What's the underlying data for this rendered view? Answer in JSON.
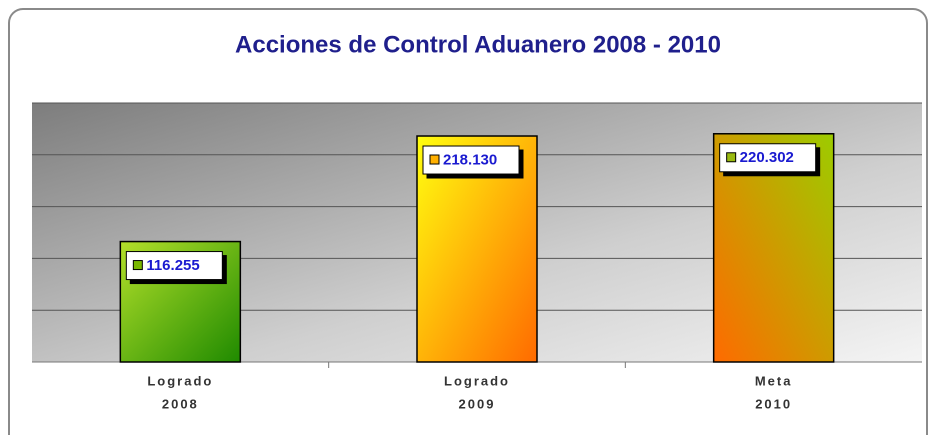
{
  "chart_data": {
    "type": "bar",
    "title": "Acciones de Control Aduanero 2008 - 2010",
    "categories": [
      [
        "Logrado",
        "2008"
      ],
      [
        "Logrado",
        "2009"
      ],
      [
        "Meta",
        "2010"
      ]
    ],
    "values": [
      116255,
      218130,
      220302
    ],
    "value_labels": [
      "116.255",
      "218.130",
      "220.302"
    ],
    "colors": [
      [
        "#b4e02a",
        "#1f8a00"
      ],
      [
        "#ffff10",
        "#ff6a00"
      ],
      [
        "#ff6a00",
        "#9ccc00"
      ]
    ],
    "key_colors": [
      "#7ab800",
      "#ffb000",
      "#9aba10"
    ],
    "ylim": [
      0,
      250000
    ],
    "yticks": [
      0,
      50000,
      100000,
      150000,
      200000,
      250000
    ],
    "grid": true
  }
}
